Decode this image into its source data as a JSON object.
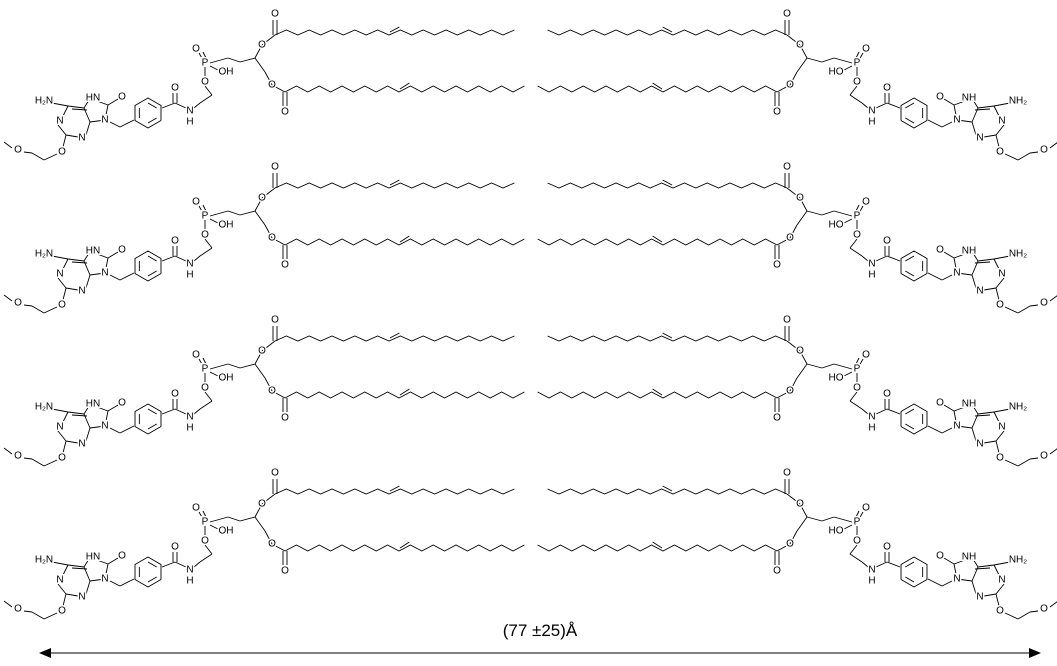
{
  "left_molecule": {
    "atoms": [
      "O",
      "O",
      "O",
      "O",
      "P",
      "O",
      "OH",
      "O",
      "N",
      "H",
      "O",
      "N",
      "O",
      "HN",
      "H₂N",
      "N",
      "N",
      "O",
      "O"
    ]
  },
  "right_molecule": {
    "atoms": [
      "O",
      "O",
      "O",
      "O",
      "P",
      "O",
      "HO",
      "O",
      "N",
      "H",
      "O",
      "N",
      "O",
      "NH",
      "NH₂",
      "N",
      "N",
      "O",
      "O"
    ]
  },
  "dimension": "(77 ±25)Å"
}
